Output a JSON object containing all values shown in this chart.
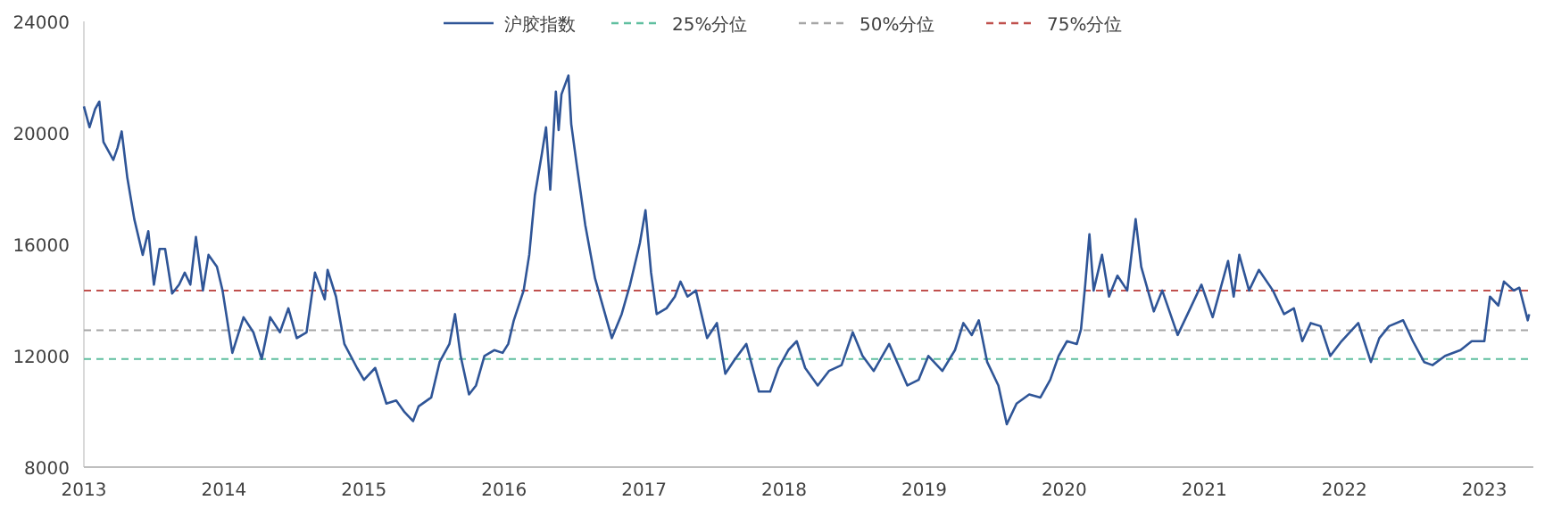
{
  "chart_data": {
    "type": "line",
    "x": [
      2013.0,
      2013.04,
      2013.08,
      2013.11,
      2013.14,
      2013.21,
      2013.24,
      2013.27,
      2013.31,
      2013.36,
      2013.42,
      2013.46,
      2013.5,
      2013.54,
      2013.58,
      2013.63,
      2013.68,
      2013.72,
      2013.76,
      2013.8,
      2013.85,
      2013.89,
      2013.95,
      2013.99,
      2014.06,
      2014.14,
      2014.21,
      2014.27,
      2014.33,
      2014.4,
      2014.46,
      2014.52,
      2014.59,
      2014.65,
      2014.72,
      2014.74,
      2014.8,
      2014.86,
      2014.95,
      2015.0,
      2015.08,
      2015.16,
      2015.23,
      2015.29,
      2015.35,
      2015.39,
      2015.48,
      2015.54,
      2015.61,
      2015.65,
      2015.69,
      2015.75,
      2015.8,
      2015.86,
      2015.93,
      2015.99,
      2016.03,
      2016.07,
      2016.14,
      2016.18,
      2016.22,
      2016.27,
      2016.3,
      2016.33,
      2016.37,
      2016.39,
      2016.41,
      2016.46,
      2016.48,
      2016.52,
      2016.58,
      2016.65,
      2016.71,
      2016.77,
      2016.84,
      2016.9,
      2016.97,
      2017.01,
      2017.05,
      2017.09,
      2017.16,
      2017.22,
      2017.26,
      2017.31,
      2017.37,
      2017.45,
      2017.52,
      2017.58,
      2017.65,
      2017.73,
      2017.82,
      2017.9,
      2017.96,
      2018.03,
      2018.09,
      2018.15,
      2018.24,
      2018.32,
      2018.41,
      2018.49,
      2018.56,
      2018.64,
      2018.75,
      2018.88,
      2018.96,
      2019.03,
      2019.13,
      2019.22,
      2019.28,
      2019.34,
      2019.39,
      2019.45,
      2019.53,
      2019.59,
      2019.66,
      2019.75,
      2019.83,
      2019.9,
      2019.96,
      2020.02,
      2020.09,
      2020.12,
      2020.15,
      2020.18,
      2020.21,
      2020.27,
      2020.32,
      2020.38,
      2020.45,
      2020.51,
      2020.55,
      2020.64,
      2020.7,
      2020.81,
      2020.89,
      2020.98,
      2021.06,
      2021.17,
      2021.21,
      2021.25,
      2021.32,
      2021.39,
      2021.49,
      2021.57,
      2021.64,
      2021.7,
      2021.76,
      2021.83,
      2021.9,
      2021.98,
      2022.1,
      2022.19,
      2022.25,
      2022.32,
      2022.42,
      2022.49,
      2022.57,
      2022.63,
      2022.72,
      2022.83,
      2022.91,
      2023.0,
      2023.04,
      2023.1,
      2023.14,
      2023.21,
      2023.25,
      2023.31,
      2023.32
    ],
    "series": [
      {
        "name": "沪胶指数",
        "color": "#2f5597",
        "values": [
          20950,
          20200,
          20850,
          21120,
          19670,
          19030,
          19460,
          20050,
          18390,
          16900,
          15620,
          16470,
          14550,
          15830,
          15830,
          14230,
          14550,
          14980,
          14550,
          16260,
          14340,
          15620,
          15190,
          14340,
          12100,
          13380,
          12840,
          11880,
          13380,
          12840,
          13700,
          12630,
          12840,
          14980,
          14020,
          15080,
          14120,
          12420,
          11560,
          11130,
          11560,
          10280,
          10390,
          9970,
          9650,
          10180,
          10500,
          11770,
          12420,
          13490,
          11990,
          10610,
          10930,
          11990,
          12200,
          12100,
          12420,
          13270,
          14340,
          15620,
          17750,
          19240,
          20200,
          17960,
          21480,
          20100,
          21380,
          22060,
          20310,
          18820,
          16690,
          14770,
          13700,
          12630,
          13490,
          14550,
          16040,
          17220,
          14980,
          13490,
          13700,
          14120,
          14660,
          14120,
          14340,
          12630,
          13170,
          11350,
          11880,
          12420,
          10710,
          10710,
          11560,
          12200,
          12520,
          11560,
          10930,
          11450,
          11660,
          12840,
          11990,
          11450,
          12420,
          10930,
          11130,
          11990,
          11450,
          12200,
          13170,
          12740,
          13270,
          11770,
          10930,
          9540,
          10280,
          10610,
          10500,
          11130,
          11990,
          12520,
          12420,
          12950,
          14550,
          16360,
          14340,
          15620,
          14120,
          14870,
          14340,
          16900,
          15190,
          13590,
          14340,
          12740,
          13590,
          14550,
          13380,
          15400,
          14120,
          15620,
          14340,
          15080,
          14340,
          13490,
          13700,
          12520,
          13170,
          13060,
          11990,
          12520,
          13170,
          11770,
          12630,
          13060,
          13270,
          12520,
          11770,
          11660,
          11990,
          12200,
          12520,
          12520,
          14120,
          13800,
          14660,
          14340,
          14440,
          13270,
          13490
        ]
      }
    ],
    "xlim": [
      2013,
      2023.35
    ],
    "xticks": [
      2013,
      2014,
      2015,
      2016,
      2017,
      2018,
      2019,
      2020,
      2021,
      2022,
      2023
    ],
    "ylim": [
      8000,
      24000
    ],
    "yticks": [
      8000,
      12000,
      16000,
      20000,
      24000
    ],
    "ref_lines": [
      {
        "axis": "y",
        "value": 11880,
        "label": "25%分位",
        "color": "#5fbf9f",
        "line_style": "dashed"
      },
      {
        "axis": "y",
        "value": 12910,
        "label": "50%分位",
        "color": "#a6a6a6",
        "line_style": "dashed"
      },
      {
        "axis": "y",
        "value": 14340,
        "label": "75%分位",
        "color": "#c0504d",
        "line_style": "dashed"
      }
    ],
    "legend": "top",
    "marker": "none",
    "line_style": "solid"
  }
}
